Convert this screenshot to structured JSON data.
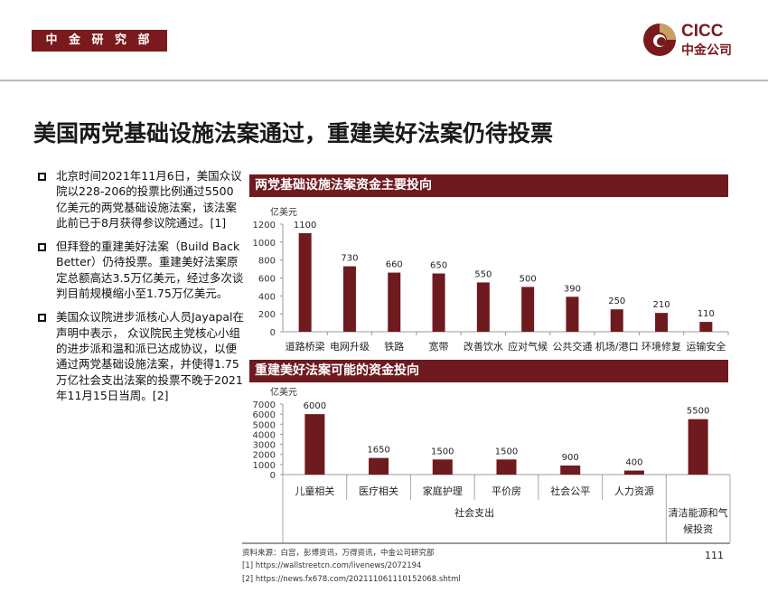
{
  "header": {
    "department": "中 金 研 究 部",
    "logo_en": "CICC",
    "logo_cn": "中金公司"
  },
  "title": "美国两党基础设施法案通过，重建美好法案仍待投票",
  "bullets": [
    "北京时间2021年11月6日，美国众议院以228-206的投票比例通过5500亿美元的两党基础设施法案，该法案此前已于8月获得参议院通过。[1]",
    "但拜登的重建美好法案（Build Back Better）仍待投票。重建美好法案原定总额高达3.5万亿美元，经过多次谈判目前规模缩小至1.75万亿美元。",
    "美国众议院进步派核心人员Jayapal在声明中表示， 众议院民主党核心小组的进步派和温和派已达成协议，以便通过两党基础设施法案，并使得1.75万亿社会支出法案的投票不晚于2021年11月15日当周。[2]"
  ],
  "colors": {
    "bar": "#6e1a1e",
    "accent": "#7a1a1d",
    "gold": "#c9a063"
  },
  "chart_data": [
    {
      "type": "bar",
      "title": "两党基础设施法案资金主要投向",
      "ylabel": "亿美元",
      "ylim": [
        0,
        1200
      ],
      "yticks": [
        0,
        200,
        400,
        600,
        800,
        1000,
        1200
      ],
      "categories": [
        "道路桥梁",
        "电网升级",
        "铁路",
        "宽带",
        "改善饮水",
        "应对气候",
        "公共交通",
        "机场/港口",
        "环境修复",
        "运输安全"
      ],
      "values": [
        1100,
        730,
        660,
        650,
        550,
        500,
        390,
        250,
        210,
        110
      ]
    },
    {
      "type": "bar",
      "title": "重建美好法案可能的资金投向",
      "ylabel": "亿美元",
      "ylim": [
        0,
        7000
      ],
      "yticks": [
        0,
        1000,
        2000,
        3000,
        4000,
        5000,
        6000,
        7000
      ],
      "categories": [
        "儿童相关",
        "医疗相关",
        "家庭护理",
        "平价房",
        "社会公平",
        "人力资源",
        "清洁能源和气候投资"
      ],
      "values": [
        6000,
        1650,
        1500,
        1500,
        900,
        400,
        5500
      ],
      "groups": [
        {
          "label": "社会支出",
          "span": 6
        },
        {
          "label": "清洁能源和气候投资",
          "lines": [
            "清洁能源和气",
            "候投资"
          ],
          "span": 1
        }
      ]
    }
  ],
  "footer": {
    "source": "资料来源：白宫，彭博资讯，万得资讯，中金公司研究部",
    "ref1": "[1] https://wallstreetcn.com/livenews/2072194",
    "ref2": "[2] https://news.fx678.com/202111061110152068.shtml",
    "page": "111"
  }
}
